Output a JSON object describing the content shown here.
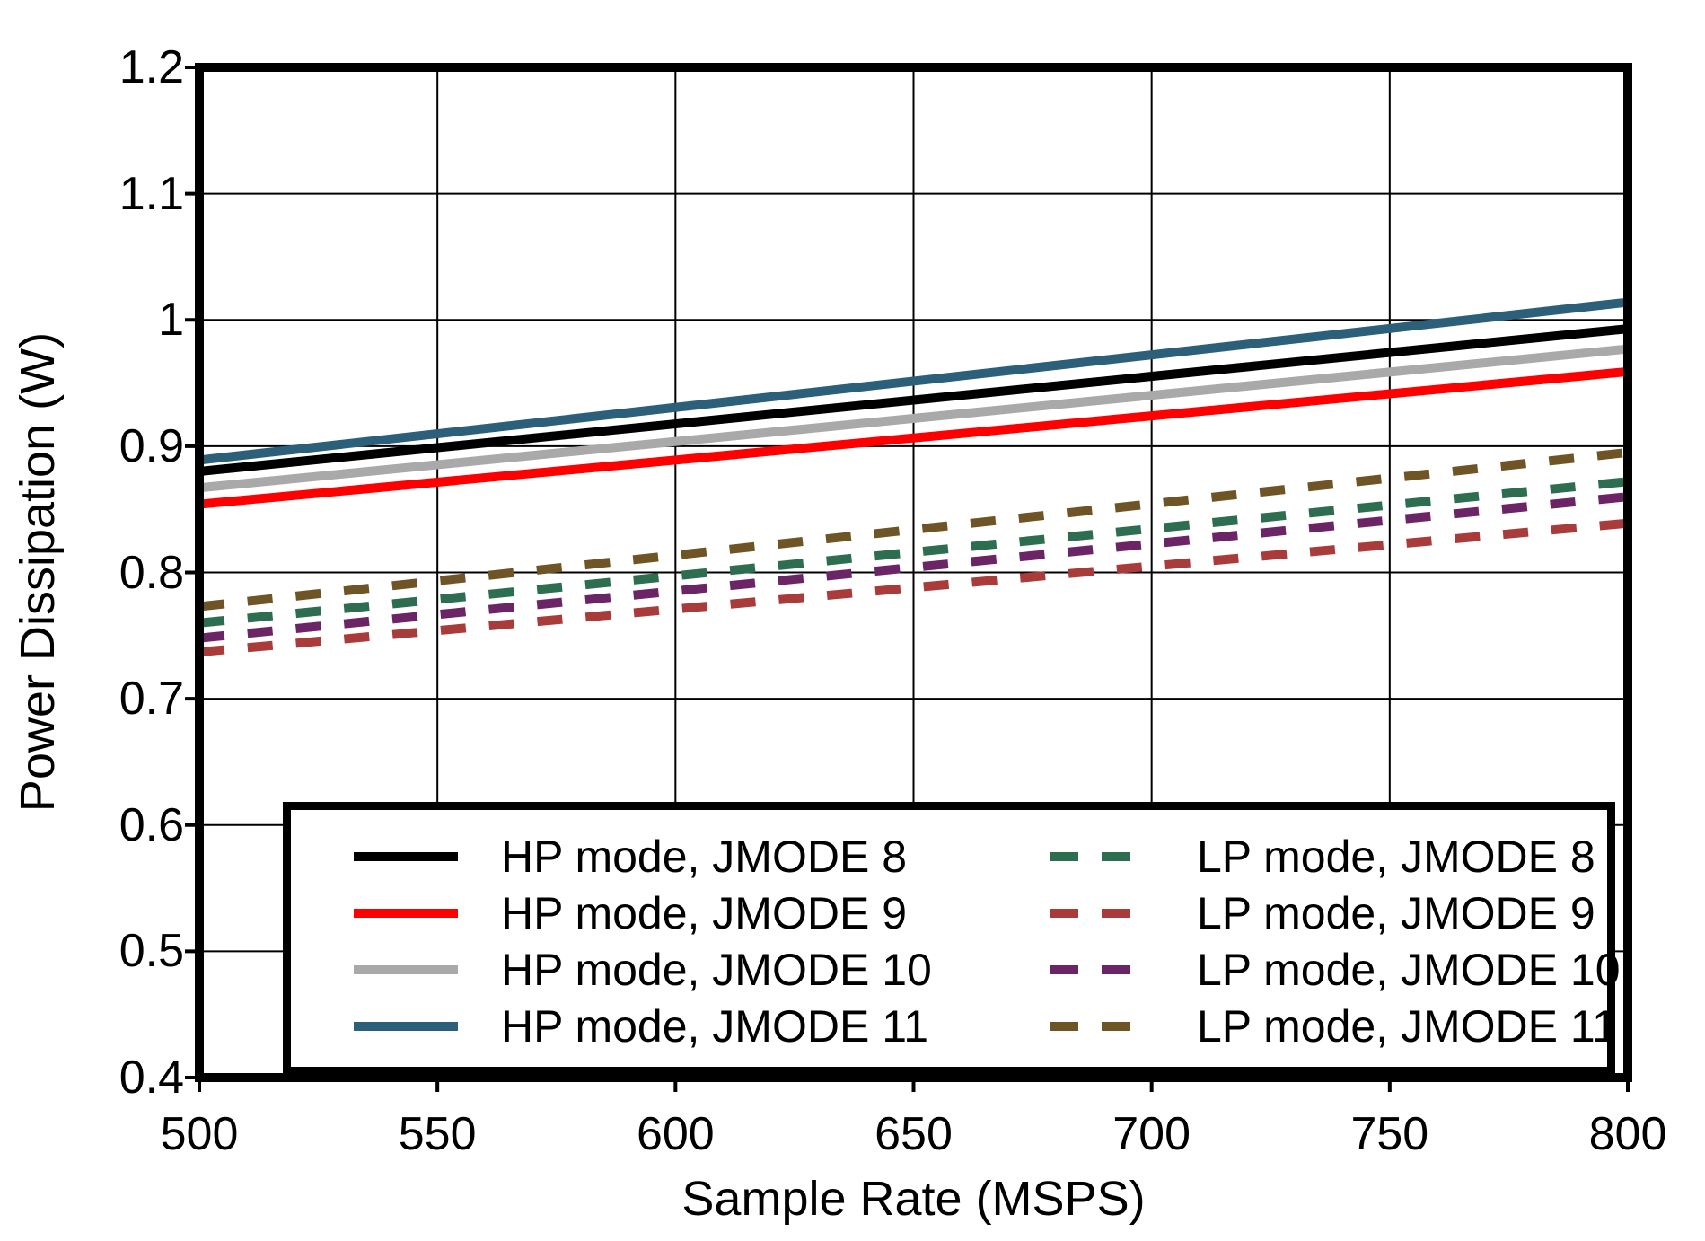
{
  "chart_data": {
    "type": "line",
    "title": "",
    "xlabel": "Sample Rate (MSPS)",
    "ylabel": "Power Dissipation (W)",
    "xlim": [
      500,
      800
    ],
    "ylim": [
      0.4,
      1.2
    ],
    "xticks": [
      500,
      550,
      600,
      650,
      700,
      750,
      800
    ],
    "xtick_labels": [
      "500",
      "550",
      "600",
      "650",
      "700",
      "750",
      "800"
    ],
    "yticks": [
      0.4,
      0.5,
      0.6,
      0.7,
      0.8,
      0.9,
      1.0,
      1.1,
      1.2
    ],
    "ytick_labels": [
      "0.4",
      "0.5",
      "0.6",
      "0.7",
      "0.8",
      "0.9",
      "1",
      "1.1",
      "1.2"
    ],
    "grid": true,
    "legend_position": "bottom-inside",
    "axis_color": "#000000",
    "series": [
      {
        "name": "HP mode, JMODE 8",
        "color": "#000000",
        "style": "solid",
        "x": [
          500,
          800
        ],
        "values": [
          0.88,
          0.993
        ]
      },
      {
        "name": "HP mode, JMODE 9",
        "color": "#FF0000",
        "style": "solid",
        "x": [
          500,
          800
        ],
        "values": [
          0.854,
          0.959
        ]
      },
      {
        "name": "HP mode, JMODE 10",
        "color": "#A9A9A9",
        "style": "solid",
        "x": [
          500,
          800
        ],
        "values": [
          0.867,
          0.977
        ]
      },
      {
        "name": "HP mode, JMODE 11",
        "color": "#2B5F7A",
        "style": "solid",
        "x": [
          500,
          800
        ],
        "values": [
          0.889,
          1.014
        ]
      },
      {
        "name": "LP mode, JMODE 8",
        "color": "#2E6E50",
        "style": "dashed",
        "x": [
          500,
          800
        ],
        "values": [
          0.76,
          0.872
        ]
      },
      {
        "name": "LP mode, JMODE 9",
        "color": "#A93B3B",
        "style": "dashed",
        "x": [
          500,
          800
        ],
        "values": [
          0.737,
          0.839
        ]
      },
      {
        "name": "LP mode, JMODE 10",
        "color": "#6B2566",
        "style": "dashed",
        "x": [
          500,
          800
        ],
        "values": [
          0.748,
          0.86
        ]
      },
      {
        "name": "LP mode, JMODE 11",
        "color": "#6F5426",
        "style": "dashed",
        "x": [
          500,
          800
        ],
        "values": [
          0.773,
          0.895
        ]
      }
    ]
  }
}
